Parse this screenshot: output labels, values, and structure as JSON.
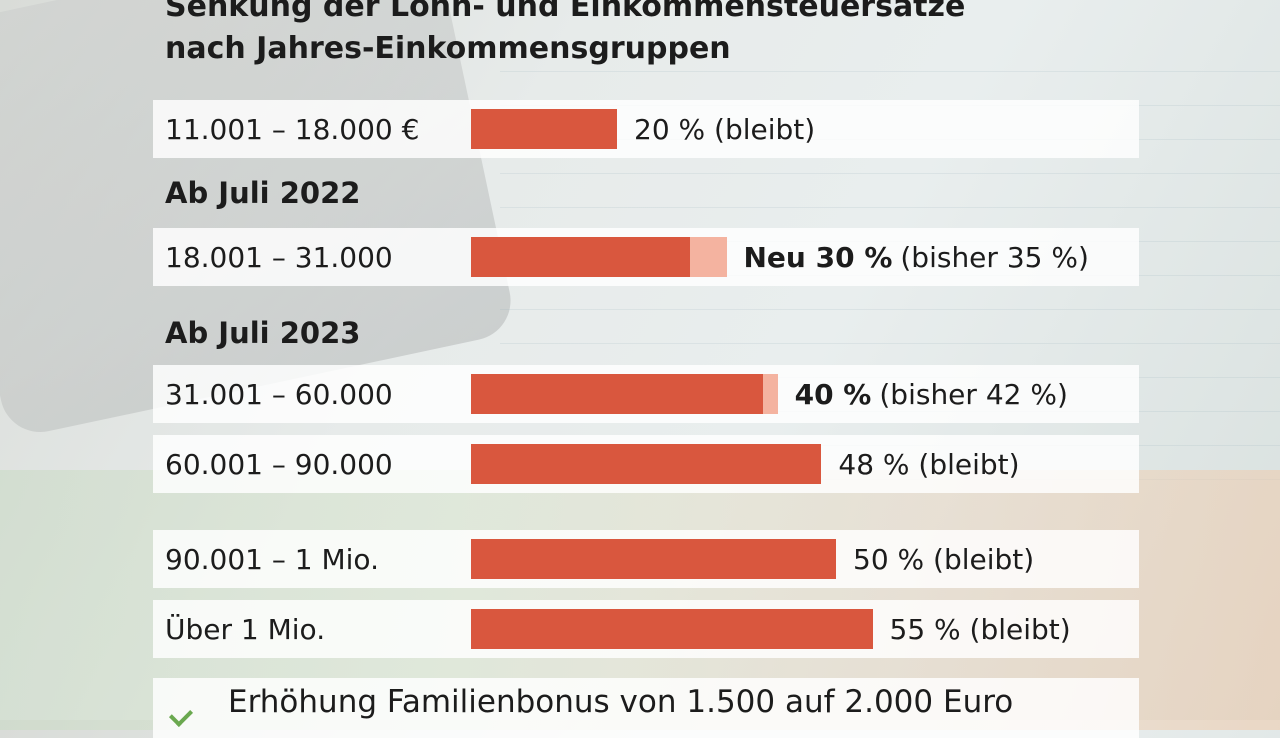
{
  "chart_data": {
    "type": "bar",
    "orientation": "horizontal",
    "title": [
      "Senkung der Lohn- und Einkommensteuersätze",
      "nach Jahres-Einkommensgruppen"
    ],
    "sections": [
      {
        "heading": "",
        "rows": [
          0
        ]
      },
      {
        "heading": "Ab Juli 2022",
        "rows": [
          1
        ]
      },
      {
        "heading": "Ab Juli 2023",
        "rows": [
          2,
          3,
          4,
          5
        ]
      }
    ],
    "categories": [
      "11.001 – 18.000 €",
      "18.001 – 31.000",
      "31.001 – 60.000",
      "60.001 – 90.000",
      "90.001 – 1 Mio.",
      "Über 1 Mio."
    ],
    "series": [
      {
        "values": [
          20,
          30,
          40,
          48,
          50,
          55
        ]
      },
      {
        "values": [
          null,
          35,
          42,
          null,
          null,
          null
        ]
      }
    ],
    "value_labels": [
      {
        "bold": "",
        "text": "20 % (bleibt)"
      },
      {
        "bold": "Neu 30 %",
        "text": "(bisher 35 %)"
      },
      {
        "bold": "40 %",
        "text": "(bisher 42 %)"
      },
      {
        "bold": "",
        "text": "48 % (bleibt)"
      },
      {
        "bold": "",
        "text": "50 % (bleibt)"
      },
      {
        "bold": "",
        "text": "55 % (bleibt)"
      }
    ],
    "unit": "%",
    "xlim": [
      0,
      100
    ],
    "colors": {
      "current": "#d9573e",
      "previous": "#f4b3a0"
    }
  },
  "footer": {
    "icon": "check-icon",
    "text": "Erhöhung Familienbonus von 1.500 auf 2.000 Euro"
  }
}
